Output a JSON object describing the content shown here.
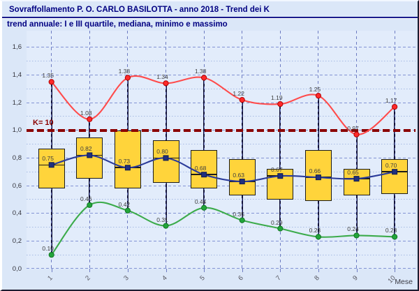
{
  "window": {
    "title": "Sovraffollamento P. O. CARLO BASILOTTA - anno 2018 - Trend dei K",
    "subtitle": "trend annuale: I e III quartile, mediana, minimo e massimo"
  },
  "chart_data": {
    "type": "boxplot-line-combo",
    "title": "Sovraffollamento P. O. CARLO BASILOTTA - anno 2018 - Trend dei K",
    "subtitle": "trend annuale: I e III quartile, mediana, minimo e massimo",
    "xlabel": "Mese",
    "categories": [
      "1",
      "2",
      "3",
      "4",
      "5",
      "6",
      "7",
      "8",
      "9",
      "10"
    ],
    "ylim": [
      0,
      1.72
    ],
    "yticks": {
      "values": [
        0,
        0.2,
        0.4,
        0.6,
        0.8,
        1.0,
        1.2,
        1.4,
        1.6
      ],
      "labels": [
        "0,0",
        "0,2",
        "0,4",
        "0,6",
        "0,8",
        "1,0",
        "1,2",
        "1,4",
        "1,6"
      ]
    },
    "minor_tick_step": 0.1,
    "grid": "on",
    "legend": "none",
    "reference_line": {
      "label": "K= 10",
      "value": 1.0,
      "color": "#8b0000",
      "style": "dashed"
    },
    "series": [
      {
        "name": "massimo",
        "type": "smooth-line",
        "color": "#ff4b4b",
        "marker": "circle",
        "marker_fill": "#ff2a2a",
        "marker_edge": "#b00000",
        "values": [
          1.35,
          1.08,
          1.38,
          1.34,
          1.38,
          1.22,
          1.19,
          1.25,
          0.97,
          1.17
        ],
        "labels": [
          "1.35",
          "1.08",
          "1.38",
          "1.34",
          "1.38",
          "1.22",
          "1.19",
          "1.25",
          "0.97",
          "1.17"
        ]
      },
      {
        "name": "mediana",
        "type": "smooth-line",
        "color": "#2a3b9a",
        "marker": "square",
        "marker_fill": "#20307f",
        "marker_edge": "#101b4d",
        "values": [
          0.75,
          0.82,
          0.73,
          0.8,
          0.68,
          0.63,
          0.67,
          0.66,
          0.65,
          0.7
        ],
        "labels": [
          "0.75",
          "0.82",
          "0.73",
          "0.80",
          "0.68",
          "0.63",
          "0.67",
          "0.66",
          "0.65",
          "0.70"
        ]
      },
      {
        "name": "minimo",
        "type": "smooth-line",
        "color": "#3cab4b",
        "marker": "circle",
        "marker_fill": "#22a53a",
        "marker_edge": "#117722",
        "values": [
          0.1,
          0.46,
          0.42,
          0.31,
          0.44,
          0.35,
          0.29,
          0.23,
          0.24,
          0.23
        ],
        "labels": [
          "0.10",
          "0.46",
          "0.42",
          "0.31",
          "0.44",
          "0.35",
          "0.29",
          "0.23",
          "0.24",
          "0.23"
        ]
      }
    ],
    "boxes": {
      "name": "I-III quartile",
      "fill": "#ffd43b",
      "border": "#1a1a1a",
      "q1": [
        0.58,
        0.65,
        0.58,
        0.62,
        0.58,
        0.53,
        0.5,
        0.49,
        0.53,
        0.54
      ],
      "q3": [
        0.87,
        0.95,
        1.0,
        0.93,
        0.86,
        0.79,
        0.72,
        0.86,
        0.72,
        0.79
      ]
    }
  }
}
